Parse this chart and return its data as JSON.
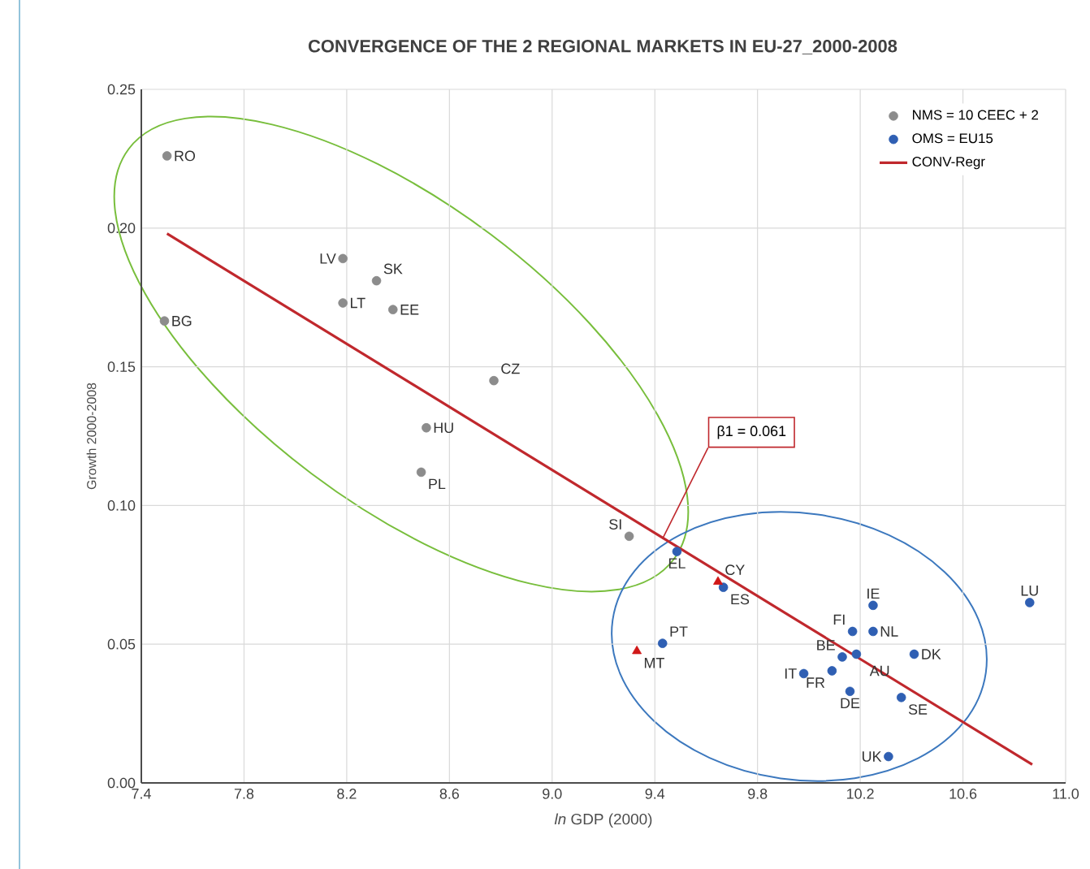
{
  "chart_data": {
    "type": "scatter",
    "title": "CONVERGENCE OF THE 2 REGIONAL MARKETS IN EU-27_2000-2008",
    "xlabel": "*ln* GDP (2000)",
    "ylabel": "Growth 2000-2008",
    "xlim": [
      7.4,
      11.0
    ],
    "ylim": [
      0.0,
      0.25
    ],
    "xticks": [
      7.4,
      7.8,
      8.2,
      8.6,
      {
        "value": 9.0,
        "label": "9.0"
      },
      9.4,
      9.8,
      10.2,
      10.6,
      {
        "value": 11.0,
        "label": "11.0"
      }
    ],
    "yticks": [
      {
        "value": 0.0,
        "label": "0.00"
      },
      {
        "value": 0.05,
        "label": "0.05"
      },
      {
        "value": 0.1,
        "label": "0.10"
      },
      {
        "value": 0.15,
        "label": "0.15"
      },
      {
        "value": 0.2,
        "label": "0.20"
      },
      {
        "value": 0.25,
        "label": "0.25"
      }
    ],
    "grid": true,
    "legend": "top right",
    "series": [
      {
        "name": "NMS = 10 CEEC + 2",
        "color": "#8c8c8c",
        "marker": "circle",
        "x": [
          7.5,
          7.49,
          8.185,
          8.316,
          8.185,
          8.38,
          8.773,
          8.51,
          8.49,
          9.3
        ],
        "values": [
          0.226,
          0.1665,
          0.189,
          0.181,
          0.173,
          0.1706,
          0.145,
          0.128,
          0.112,
          0.0889
        ]
      },
      {
        "name": "OMS = EU15",
        "color": "#2f5fb3",
        "marker": "circle",
        "x": [
          9.486,
          9.667,
          9.43,
          10.25,
          10.17,
          10.25,
          10.13,
          10.185,
          10.41,
          9.98,
          10.09,
          10.16,
          10.36,
          10.31,
          10.86
        ],
        "values": [
          0.0834,
          0.0705,
          0.0503,
          0.064,
          0.0546,
          0.0546,
          0.0454,
          0.0464,
          0.0464,
          0.0394,
          0.0404,
          0.033,
          0.0308,
          0.0095,
          0.065
        ]
      },
      {
        "color": "#d01818",
        "marker": "triangle",
        "x": [
          9.646,
          9.33
        ],
        "values": [
          0.0725,
          0.0475
        ]
      },
      {
        "name": "CONV-Regr",
        "type": "line",
        "color": "#c0282d",
        "marker": "none",
        "x": [
          7.5,
          10.87
        ],
        "values": [
          0.198,
          0.0066
        ]
      }
    ],
    "annotations": [
      {
        "text": "β1 = 0.061",
        "x": 9.43,
        "y": 0.088
      },
      {
        "text": "RO",
        "x": 7.5,
        "y": 0.226
      },
      {
        "text": "BG",
        "x": 7.49,
        "y": 0.1665
      },
      {
        "text": "LV",
        "x": 8.185,
        "y": 0.189
      },
      {
        "text": "SK",
        "x": 8.316,
        "y": 0.181
      },
      {
        "text": "LT",
        "x": 8.185,
        "y": 0.173
      },
      {
        "text": "EE",
        "x": 8.38,
        "y": 0.1706
      },
      {
        "text": "CZ",
        "x": 8.773,
        "y": 0.145
      },
      {
        "text": "HU",
        "x": 8.51,
        "y": 0.128
      },
      {
        "text": "PL",
        "x": 8.49,
        "y": 0.112
      },
      {
        "text": "SI",
        "x": 9.3,
        "y": 0.0889
      },
      {
        "text": "EL",
        "x": 9.486,
        "y": 0.0834
      },
      {
        "text": "ES",
        "x": 9.667,
        "y": 0.0705
      },
      {
        "text": "CY",
        "x": 9.646,
        "y": 0.0725
      },
      {
        "text": "PT",
        "x": 9.43,
        "y": 0.0503
      },
      {
        "text": "MT",
        "x": 9.33,
        "y": 0.0475
      },
      {
        "text": "IE",
        "x": 10.25,
        "y": 0.064
      },
      {
        "text": "FI",
        "x": 10.17,
        "y": 0.0546
      },
      {
        "text": "NL",
        "x": 10.25,
        "y": 0.0546
      },
      {
        "text": "BE",
        "x": 10.13,
        "y": 0.0454
      },
      {
        "text": "AU",
        "x": 10.185,
        "y": 0.0464
      },
      {
        "text": "DK",
        "x": 10.41,
        "y": 0.0464
      },
      {
        "text": "IT",
        "x": 9.98,
        "y": 0.0394
      },
      {
        "text": "FR",
        "x": 10.09,
        "y": 0.0404
      },
      {
        "text": "DE",
        "x": 10.16,
        "y": 0.033
      },
      {
        "text": "SE",
        "x": 10.36,
        "y": 0.0308
      },
      {
        "text": "UK",
        "x": 10.31,
        "y": 0.0095
      },
      {
        "text": "LU",
        "x": 10.86,
        "y": 0.065
      }
    ]
  }
}
